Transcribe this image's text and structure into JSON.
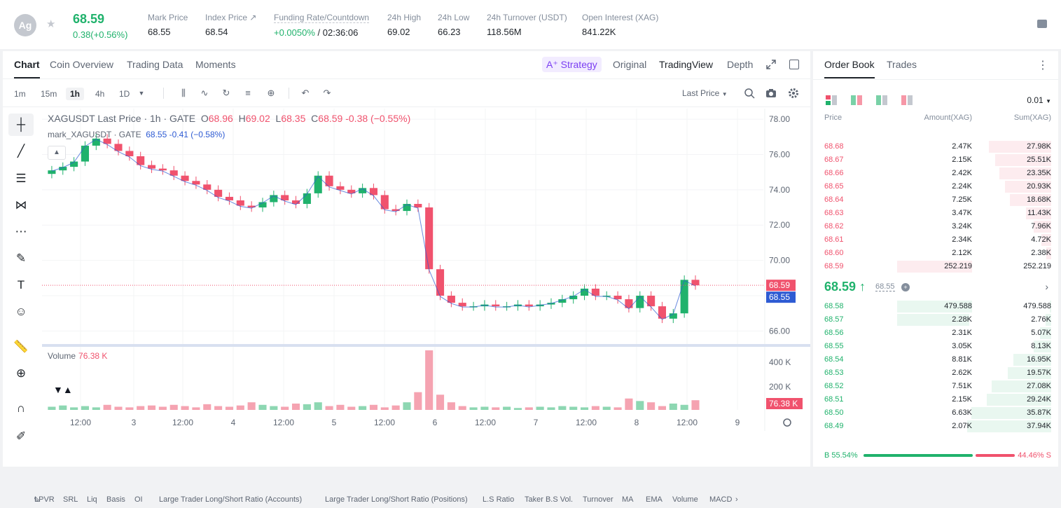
{
  "header": {
    "coin_symbol": "Ag",
    "last_price": "68.59",
    "change": "0.38(+0.56%)",
    "stats": [
      {
        "label": "Mark Price",
        "value": "68.55"
      },
      {
        "label": "Index Price ↗",
        "value": "68.54"
      },
      {
        "label": "Funding Rate/Countdown",
        "value_green": "+0.0050%",
        "value": " / 02:36:06"
      },
      {
        "label": "24h High",
        "value": "69.02"
      },
      {
        "label": "24h Low",
        "value": "66.23"
      },
      {
        "label": "24h Turnover (USDT)",
        "value": "118.56M"
      },
      {
        "label": "Open Interest (XAG)",
        "value": "841.22K"
      }
    ]
  },
  "chart_tabs": [
    "Chart",
    "Coin Overview",
    "Trading Data",
    "Moments"
  ],
  "view_tabs": {
    "strategy": "Strategy",
    "original": "Original",
    "tradingview": "TradingView",
    "depth": "Depth"
  },
  "intervals": [
    "1m",
    "15m",
    "1h",
    "4h",
    "1D"
  ],
  "price_type": "Last Price",
  "legend": {
    "main": "XAGUSDT Last Price · 1h · GATE",
    "o_label": "O",
    "o_val": "68.96",
    "h_label": "H",
    "h_val": "69.02",
    "l_label": "L",
    "l_val": "68.35",
    "c_label": "C",
    "c_val": "68.59",
    "chg": "-0.38 (−0.55%)",
    "mark_label": "mark_XAGUSDT · GATE",
    "mark_val": "68.55 -0.41 (−0.58%)"
  },
  "volume_legend": {
    "label": "Volume",
    "value": "76.38 K"
  },
  "indicators": [
    "LPVR",
    "SRL",
    "Liq",
    "Basis",
    "OI",
    "Large Trader Long/Short Ratio (Accounts)",
    "Large Trader Long/Short Ratio (Positions)",
    "L.S Ratio",
    "Taker B.S Vol.",
    "Turnover",
    "MA",
    "EMA",
    "Volume",
    "MACD"
  ],
  "chart_data": {
    "type": "candlestick",
    "title": "XAGUSDT Last Price · 1h · GATE",
    "price_axis": [
      "78.00",
      "76.00",
      "74.00",
      "72.00",
      "70.00",
      "68.00",
      "66.00"
    ],
    "price_range": [
      65.5,
      78.4
    ],
    "volume_axis": [
      "400 K",
      "200 K"
    ],
    "volume_max": 470,
    "time_ticks": [
      "12:00",
      "3",
      "12:00",
      "4",
      "12:00",
      "5",
      "12:00",
      "6",
      "12:00",
      "7",
      "12:00",
      "8",
      "12:00",
      "9"
    ],
    "last_price_tag": "68.59",
    "mark_price_tag": "68.55",
    "volume_tag": "76.38 K",
    "close_series": [
      75.1,
      75.3,
      75.6,
      76.5,
      76.9,
      76.6,
      76.2,
      75.9,
      75.4,
      75.2,
      75.1,
      74.8,
      74.5,
      74.3,
      74.0,
      73.6,
      73.4,
      73.1,
      73.0,
      73.3,
      73.7,
      73.4,
      73.2,
      73.8,
      74.8,
      74.2,
      74.0,
      73.8,
      74.1,
      73.7,
      72.9,
      72.8,
      73.2,
      73.0,
      69.5,
      68.0,
      67.6,
      67.4,
      67.4,
      67.5,
      67.4,
      67.4,
      67.5,
      67.4,
      67.5,
      67.6,
      67.8,
      68.0,
      68.4,
      68.0,
      68.0,
      67.8,
      67.3,
      68.0,
      67.4,
      66.7,
      67.0,
      68.9,
      68.59
    ],
    "volume_series": [
      25,
      35,
      20,
      30,
      20,
      40,
      25,
      20,
      30,
      35,
      25,
      40,
      30,
      20,
      45,
      30,
      25,
      35,
      60,
      40,
      30,
      25,
      50,
      45,
      60,
      30,
      40,
      25,
      30,
      40,
      20,
      35,
      60,
      140,
      470,
      120,
      60,
      30,
      20,
      25,
      20,
      25,
      15,
      20,
      25,
      20,
      30,
      25,
      20,
      30,
      25,
      20,
      90,
      70,
      60,
      30,
      50,
      40,
      76.38
    ]
  },
  "order_book": {
    "tabs": [
      "Order Book",
      "Trades"
    ],
    "precision": "0.01",
    "headers": {
      "price": "Price",
      "amount": "Amount(XAG)",
      "sum": "Sum(XAG)"
    },
    "asks": [
      {
        "price": "68.68",
        "amount": "2.47K",
        "sum": "27.98K",
        "depth": 0.74
      },
      {
        "price": "68.67",
        "amount": "2.15K",
        "sum": "25.51K",
        "depth": 0.67
      },
      {
        "price": "68.66",
        "amount": "2.42K",
        "sum": "23.35K",
        "depth": 0.62
      },
      {
        "price": "68.65",
        "amount": "2.24K",
        "sum": "20.93K",
        "depth": 0.55
      },
      {
        "price": "68.64",
        "amount": "7.25K",
        "sum": "18.68K",
        "depth": 0.49
      },
      {
        "price": "68.63",
        "amount": "3.47K",
        "sum": "11.43K",
        "depth": 0.3
      },
      {
        "price": "68.62",
        "amount": "3.24K",
        "sum": "7.96K",
        "depth": 0.21
      },
      {
        "price": "68.61",
        "amount": "2.34K",
        "sum": "4.72K",
        "depth": 0.12
      },
      {
        "price": "68.60",
        "amount": "2.12K",
        "sum": "2.38K",
        "depth": 0.06
      },
      {
        "price": "68.59",
        "amount": "252.219",
        "sum": "252.219",
        "depth": 0.0
      }
    ],
    "mid_price": "68.59 ↑",
    "mid_mark": "68.55",
    "bids": [
      {
        "price": "68.58",
        "amount": "479.588",
        "sum": "479.588",
        "depth": 0.02
      },
      {
        "price": "68.57",
        "amount": "2.28K",
        "sum": "2.76K",
        "depth": 0.07
      },
      {
        "price": "68.56",
        "amount": "2.31K",
        "sum": "5.07K",
        "depth": 0.13
      },
      {
        "price": "68.55",
        "amount": "3.05K",
        "sum": "8.13K",
        "depth": 0.21
      },
      {
        "price": "68.54",
        "amount": "8.81K",
        "sum": "16.95K",
        "depth": 0.45
      },
      {
        "price": "68.53",
        "amount": "2.62K",
        "sum": "19.57K",
        "depth": 0.52
      },
      {
        "price": "68.52",
        "amount": "7.51K",
        "sum": "27.08K",
        "depth": 0.71
      },
      {
        "price": "68.51",
        "amount": "2.15K",
        "sum": "29.24K",
        "depth": 0.77
      },
      {
        "price": "68.50",
        "amount": "6.63K",
        "sum": "35.87K",
        "depth": 0.95
      },
      {
        "price": "68.49",
        "amount": "2.07K",
        "sum": "37.94K",
        "depth": 1.0
      }
    ],
    "buy_ratio": "B 55.54%",
    "sell_ratio": "44.46% S"
  },
  "colors": {
    "up": "#20b26c",
    "down": "#f0526d",
    "up_light": "#e9f7f0",
    "down_light": "#fdecef",
    "accent": "#7b3ff2"
  }
}
